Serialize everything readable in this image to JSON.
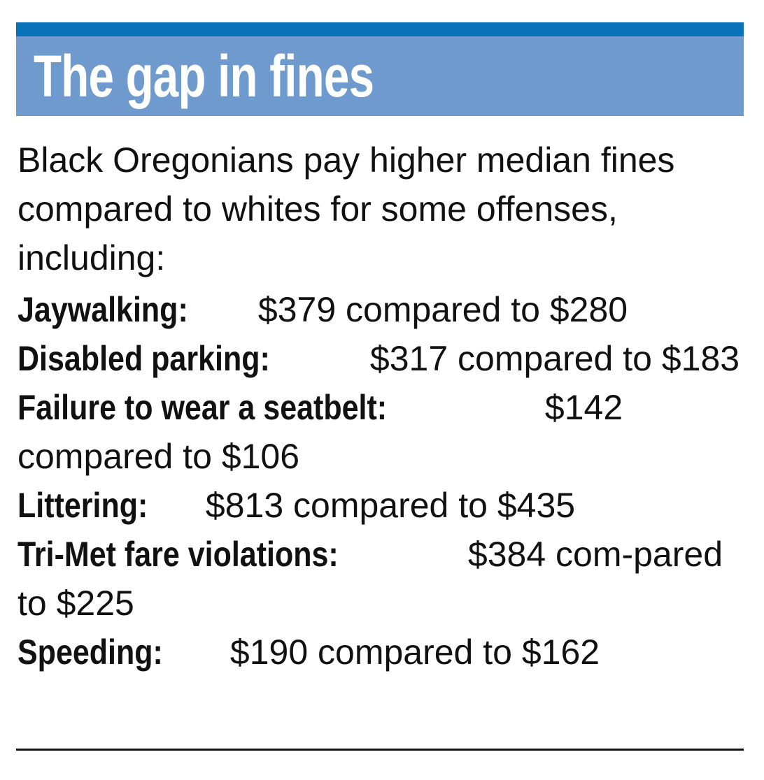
{
  "title": "The gap in fines",
  "intro": "Black Oregonians pay higher median fines compared to whites for some offenses, including:",
  "items": [
    {
      "label": "Jaywalking:",
      "text": " $379 compared to $280"
    },
    {
      "label": "Disabled parking:",
      "text": " $317 compared to $183"
    },
    {
      "label": "Failure to wear a seatbelt:",
      "text": " $142 compared to $106"
    },
    {
      "label": "Littering:",
      "text": " $813 compared to $435"
    },
    {
      "label": "Tri-Met fare violations:",
      "text": " $384 com-pared to $225"
    },
    {
      "label": "Speeding:",
      "text": " $190 compared to $162"
    }
  ],
  "colors": {
    "top_rule": "#0a72b8",
    "title_band": "#6f9acd",
    "title_text": "#ffffff",
    "body_text": "#111111"
  }
}
